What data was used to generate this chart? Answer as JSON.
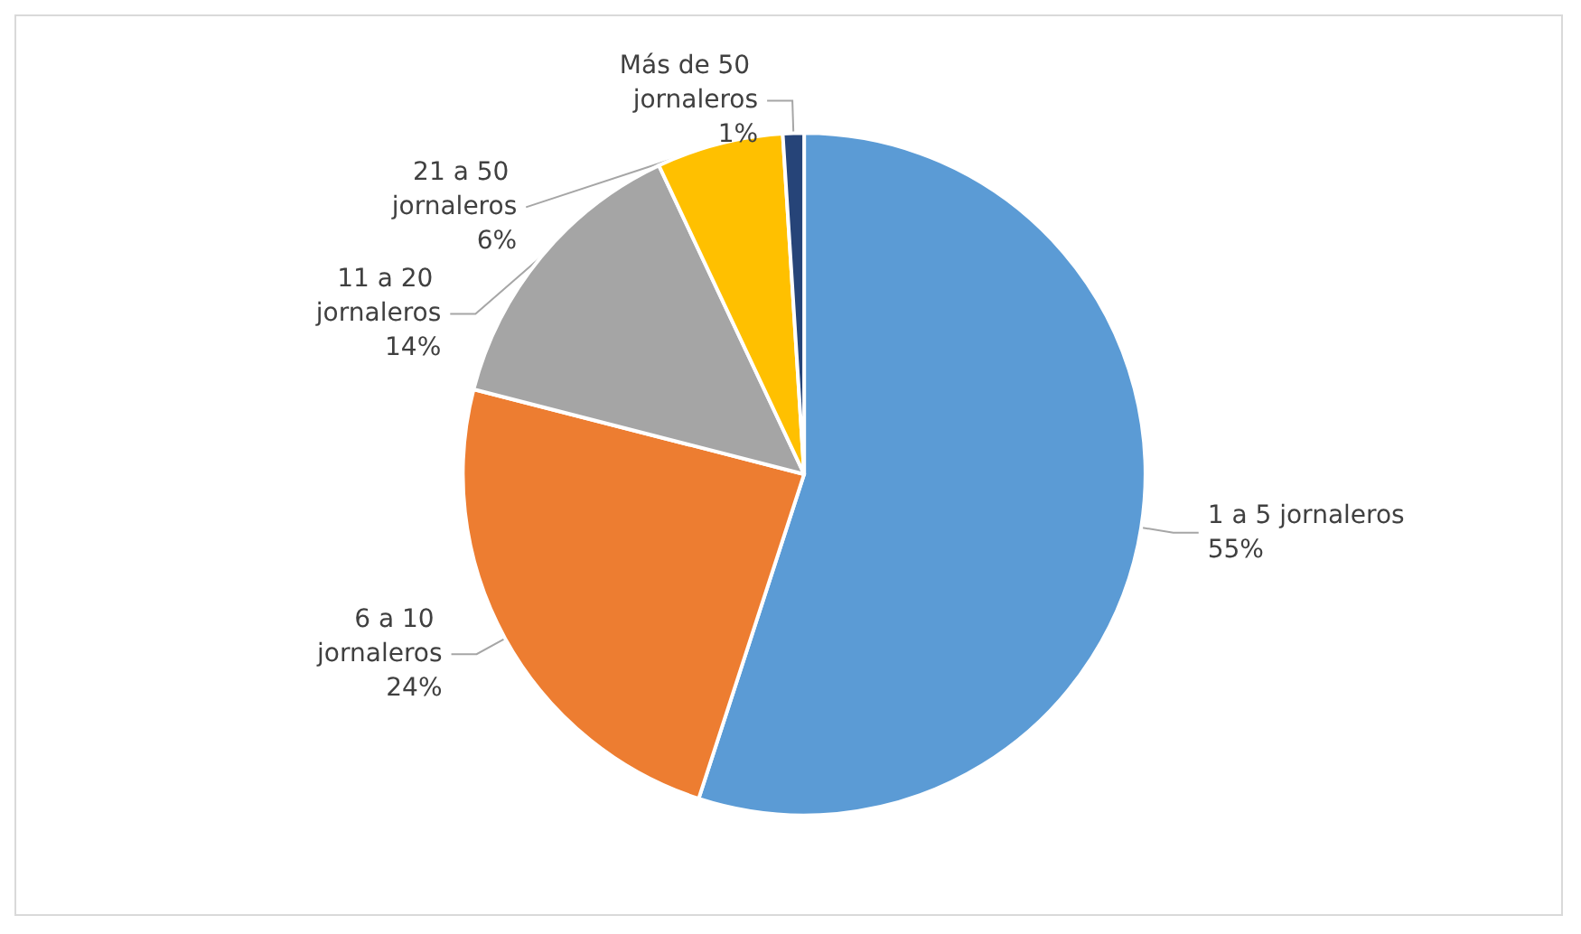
{
  "chart_data": {
    "type": "pie",
    "categories": [
      "1 a 5 jornaleros",
      "6 a 10 jornaleros",
      "11 a 20 jornaleros",
      "21 a 50 jornaleros",
      "Más de 50 jornaleros"
    ],
    "values": [
      55,
      24,
      14,
      6,
      1
    ],
    "value_labels": [
      "55%",
      "24%",
      "14%",
      "6%",
      "1%"
    ],
    "colors": [
      "#5b9bd5",
      "#ed7d31",
      "#a5a5a5",
      "#ffc000",
      "#264478"
    ],
    "legend": false
  }
}
